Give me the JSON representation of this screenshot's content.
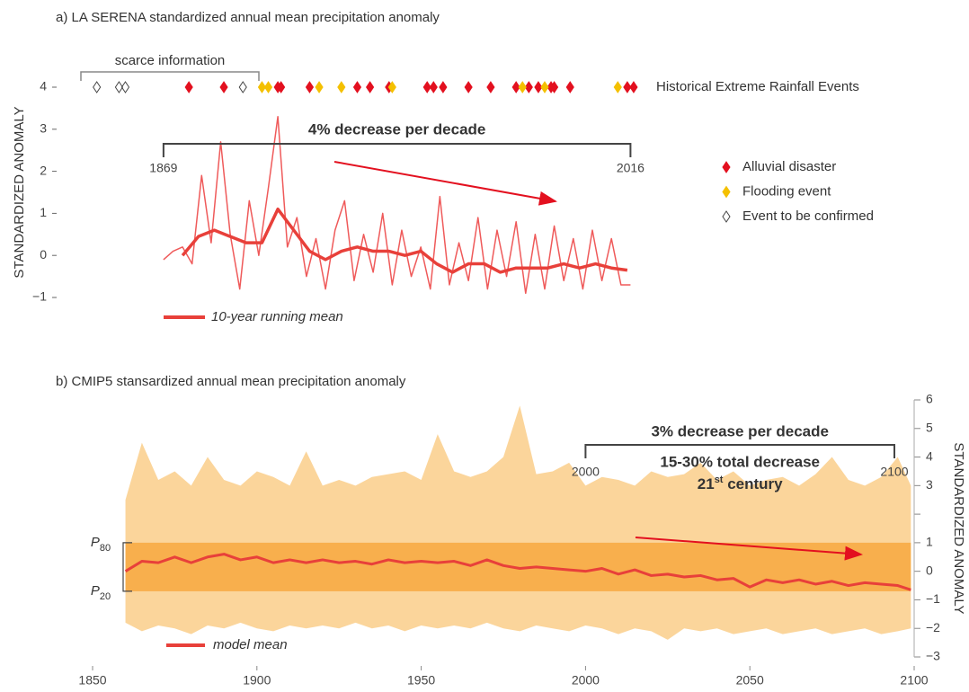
{
  "chart_data": [
    {
      "type": "line",
      "title": "a) LA SERENA standardized annual mean precipitation anomaly",
      "ylabel": "STANDARDIZED ANOMALY",
      "xlim": [
        1843,
        2019
      ],
      "ylim": [
        -1,
        4
      ],
      "yticks": [
        {
          "value": -1,
          "label": "−1"
        },
        0,
        1,
        2,
        3,
        4
      ],
      "series": [
        {
          "color": "#ef5a5a",
          "x": [
            1869,
            1872,
            1875,
            1878,
            1881,
            1884,
            1887,
            1890,
            1893,
            1896,
            1899,
            1902,
            1905,
            1908,
            1911,
            1914,
            1917,
            1920,
            1923,
            1926,
            1929,
            1932,
            1935,
            1938,
            1941,
            1944,
            1947,
            1950,
            1953,
            1956,
            1959,
            1962,
            1965,
            1968,
            1971,
            1974,
            1977,
            1980,
            1983,
            1986,
            1989,
            1992,
            1995,
            1998,
            2001,
            2004,
            2007,
            2010,
            2013,
            2016
          ],
          "values": [
            -0.1,
            0.1,
            0.2,
            -0.2,
            1.9,
            0.3,
            2.7,
            0.5,
            -0.8,
            1.3,
            0.0,
            1.6,
            3.3,
            0.2,
            0.9,
            -0.5,
            0.4,
            -0.8,
            0.6,
            1.3,
            -0.6,
            0.5,
            -0.4,
            1.0,
            -0.7,
            0.6,
            -0.5,
            0.2,
            -0.8,
            1.4,
            -0.7,
            0.3,
            -0.6,
            0.9,
            -0.8,
            0.6,
            -0.5,
            0.8,
            -0.9,
            0.5,
            -0.8,
            0.7,
            -0.6,
            0.4,
            -0.8,
            0.6,
            -0.6,
            0.4,
            -0.7,
            -0.7
          ]
        },
        {
          "name": "10-year running mean",
          "color": "#e8403a",
          "x": [
            1875,
            1880,
            1885,
            1890,
            1895,
            1900,
            1905,
            1910,
            1915,
            1920,
            1925,
            1930,
            1935,
            1940,
            1945,
            1950,
            1955,
            1960,
            1965,
            1970,
            1975,
            1980,
            1985,
            1990,
            1995,
            2000,
            2005,
            2010,
            2015
          ],
          "values": [
            0.0,
            0.45,
            0.6,
            0.45,
            0.3,
            0.3,
            1.1,
            0.6,
            0.1,
            -0.1,
            0.1,
            0.2,
            0.1,
            0.1,
            0.0,
            0.1,
            -0.2,
            -0.4,
            -0.2,
            -0.2,
            -0.4,
            -0.3,
            -0.3,
            -0.3,
            -0.2,
            -0.3,
            -0.2,
            -0.3,
            -0.35
          ]
        }
      ],
      "bracket": {
        "label": "4% decrease per decade",
        "start": 1869,
        "end": 2016
      },
      "scarce_label": "scarce information",
      "events_title": "Historical Extreme Rainfall Events",
      "event_types": [
        {
          "name": "Alluvial disaster",
          "color": "#e3101f",
          "years": [
            1877,
            1888,
            1905,
            1906,
            1915,
            1930,
            1934,
            1940,
            1952,
            1954,
            1957,
            1965,
            1972,
            1980,
            1984,
            1987,
            1991,
            1992,
            1997,
            2015,
            2017
          ]
        },
        {
          "name": "Flooding event",
          "color": "#f4c000",
          "years": [
            1900,
            1902,
            1918,
            1925,
            1941,
            1982,
            1989,
            2012
          ]
        },
        {
          "name": "Event to be confirmed",
          "color": "none",
          "years": [
            1848,
            1855,
            1857,
            1894
          ]
        }
      ]
    },
    {
      "type": "line",
      "title": "b) CMIP5 stansardized annual mean precipitation anomaly",
      "ylabel": "STANDARDIZED ANOMALY",
      "xlim": [
        1850,
        2100
      ],
      "xticks": [
        1850,
        1900,
        1950,
        2000,
        2050,
        2100
      ],
      "ylim": [
        -3,
        6
      ],
      "yticks": [
        {
          "value": -3,
          "label": "−3"
        },
        {
          "value": -2,
          "label": "−2"
        },
        {
          "value": -1,
          "label": "−1"
        },
        0,
        1,
        {
          "value": 2,
          "label": null
        },
        3,
        4,
        5,
        6
      ],
      "envelope": {
        "color": "#f9c77a",
        "x": [
          1860,
          1865,
          1870,
          1875,
          1880,
          1885,
          1890,
          1895,
          1900,
          1905,
          1910,
          1915,
          1920,
          1925,
          1930,
          1935,
          1940,
          1945,
          1950,
          1955,
          1960,
          1965,
          1970,
          1975,
          1980,
          1985,
          1990,
          1995,
          2000,
          2005,
          2010,
          2015,
          2020,
          2025,
          2030,
          2035,
          2040,
          2045,
          2050,
          2055,
          2060,
          2065,
          2070,
          2075,
          2080,
          2085,
          2090,
          2095,
          2099
        ],
        "upper": [
          2.5,
          4.5,
          3.2,
          3.5,
          3.0,
          4.0,
          3.2,
          3.0,
          3.5,
          3.3,
          3.0,
          4.2,
          3.0,
          3.2,
          3.0,
          3.3,
          3.4,
          3.5,
          3.2,
          4.8,
          3.5,
          3.3,
          3.5,
          4.0,
          5.8,
          3.4,
          3.5,
          3.8,
          3.0,
          3.3,
          3.2,
          3.0,
          3.5,
          3.3,
          3.4,
          3.8,
          3.2,
          3.5,
          3.0,
          3.2,
          3.3,
          3.0,
          3.4,
          4.0,
          3.2,
          3.0,
          3.3,
          4.0,
          3.0
        ],
        "lower": [
          -1.8,
          -2.1,
          -1.9,
          -2.0,
          -2.2,
          -1.9,
          -2.0,
          -1.8,
          -2.0,
          -2.1,
          -1.9,
          -2.0,
          -1.9,
          -2.0,
          -1.8,
          -2.0,
          -1.9,
          -2.1,
          -1.9,
          -2.0,
          -1.9,
          -2.0,
          -1.8,
          -2.0,
          -2.1,
          -1.9,
          -2.0,
          -2.1,
          -1.9,
          -2.0,
          -2.2,
          -2.0,
          -2.1,
          -2.4,
          -2.0,
          -2.1,
          -2.0,
          -2.2,
          -2.1,
          -2.0,
          -2.2,
          -2.1,
          -2.0,
          -2.2,
          -2.1,
          -2.0,
          -2.2,
          -2.1,
          -2.0
        ]
      },
      "percentile_band": {
        "color": "#f7a53a",
        "upper": 1,
        "lower": -0.7,
        "upper_label": {
          "text": "P",
          "sub": "80"
        },
        "lower_label": {
          "text": "P",
          "sub": "20"
        }
      },
      "series": [
        {
          "name": "model mean",
          "color": "#e8403a",
          "x": [
            1860,
            1865,
            1870,
            1875,
            1880,
            1885,
            1890,
            1895,
            1900,
            1905,
            1910,
            1915,
            1920,
            1925,
            1930,
            1935,
            1940,
            1945,
            1950,
            1955,
            1960,
            1965,
            1970,
            1975,
            1980,
            1985,
            1990,
            1995,
            2000,
            2005,
            2010,
            2015,
            2020,
            2025,
            2030,
            2035,
            2040,
            2045,
            2050,
            2055,
            2060,
            2065,
            2070,
            2075,
            2080,
            2085,
            2090,
            2095,
            2099
          ],
          "values": [
            0.0,
            0.35,
            0.3,
            0.5,
            0.3,
            0.5,
            0.6,
            0.4,
            0.5,
            0.3,
            0.4,
            0.3,
            0.4,
            0.3,
            0.35,
            0.25,
            0.4,
            0.3,
            0.35,
            0.3,
            0.35,
            0.2,
            0.4,
            0.2,
            0.1,
            0.15,
            0.1,
            0.05,
            0.0,
            0.1,
            -0.1,
            0.05,
            -0.15,
            -0.1,
            -0.2,
            -0.15,
            -0.3,
            -0.25,
            -0.55,
            -0.3,
            -0.4,
            -0.3,
            -0.45,
            -0.35,
            -0.5,
            -0.4,
            -0.45,
            -0.5,
            -0.65
          ]
        }
      ],
      "bracket": {
        "label": "3% decrease per decade",
        "start": 2000,
        "end": 2100,
        "note": "15-30% total decrease",
        "century": {
          "text": "21",
          "sup": "st",
          "rest": " century"
        }
      }
    }
  ]
}
